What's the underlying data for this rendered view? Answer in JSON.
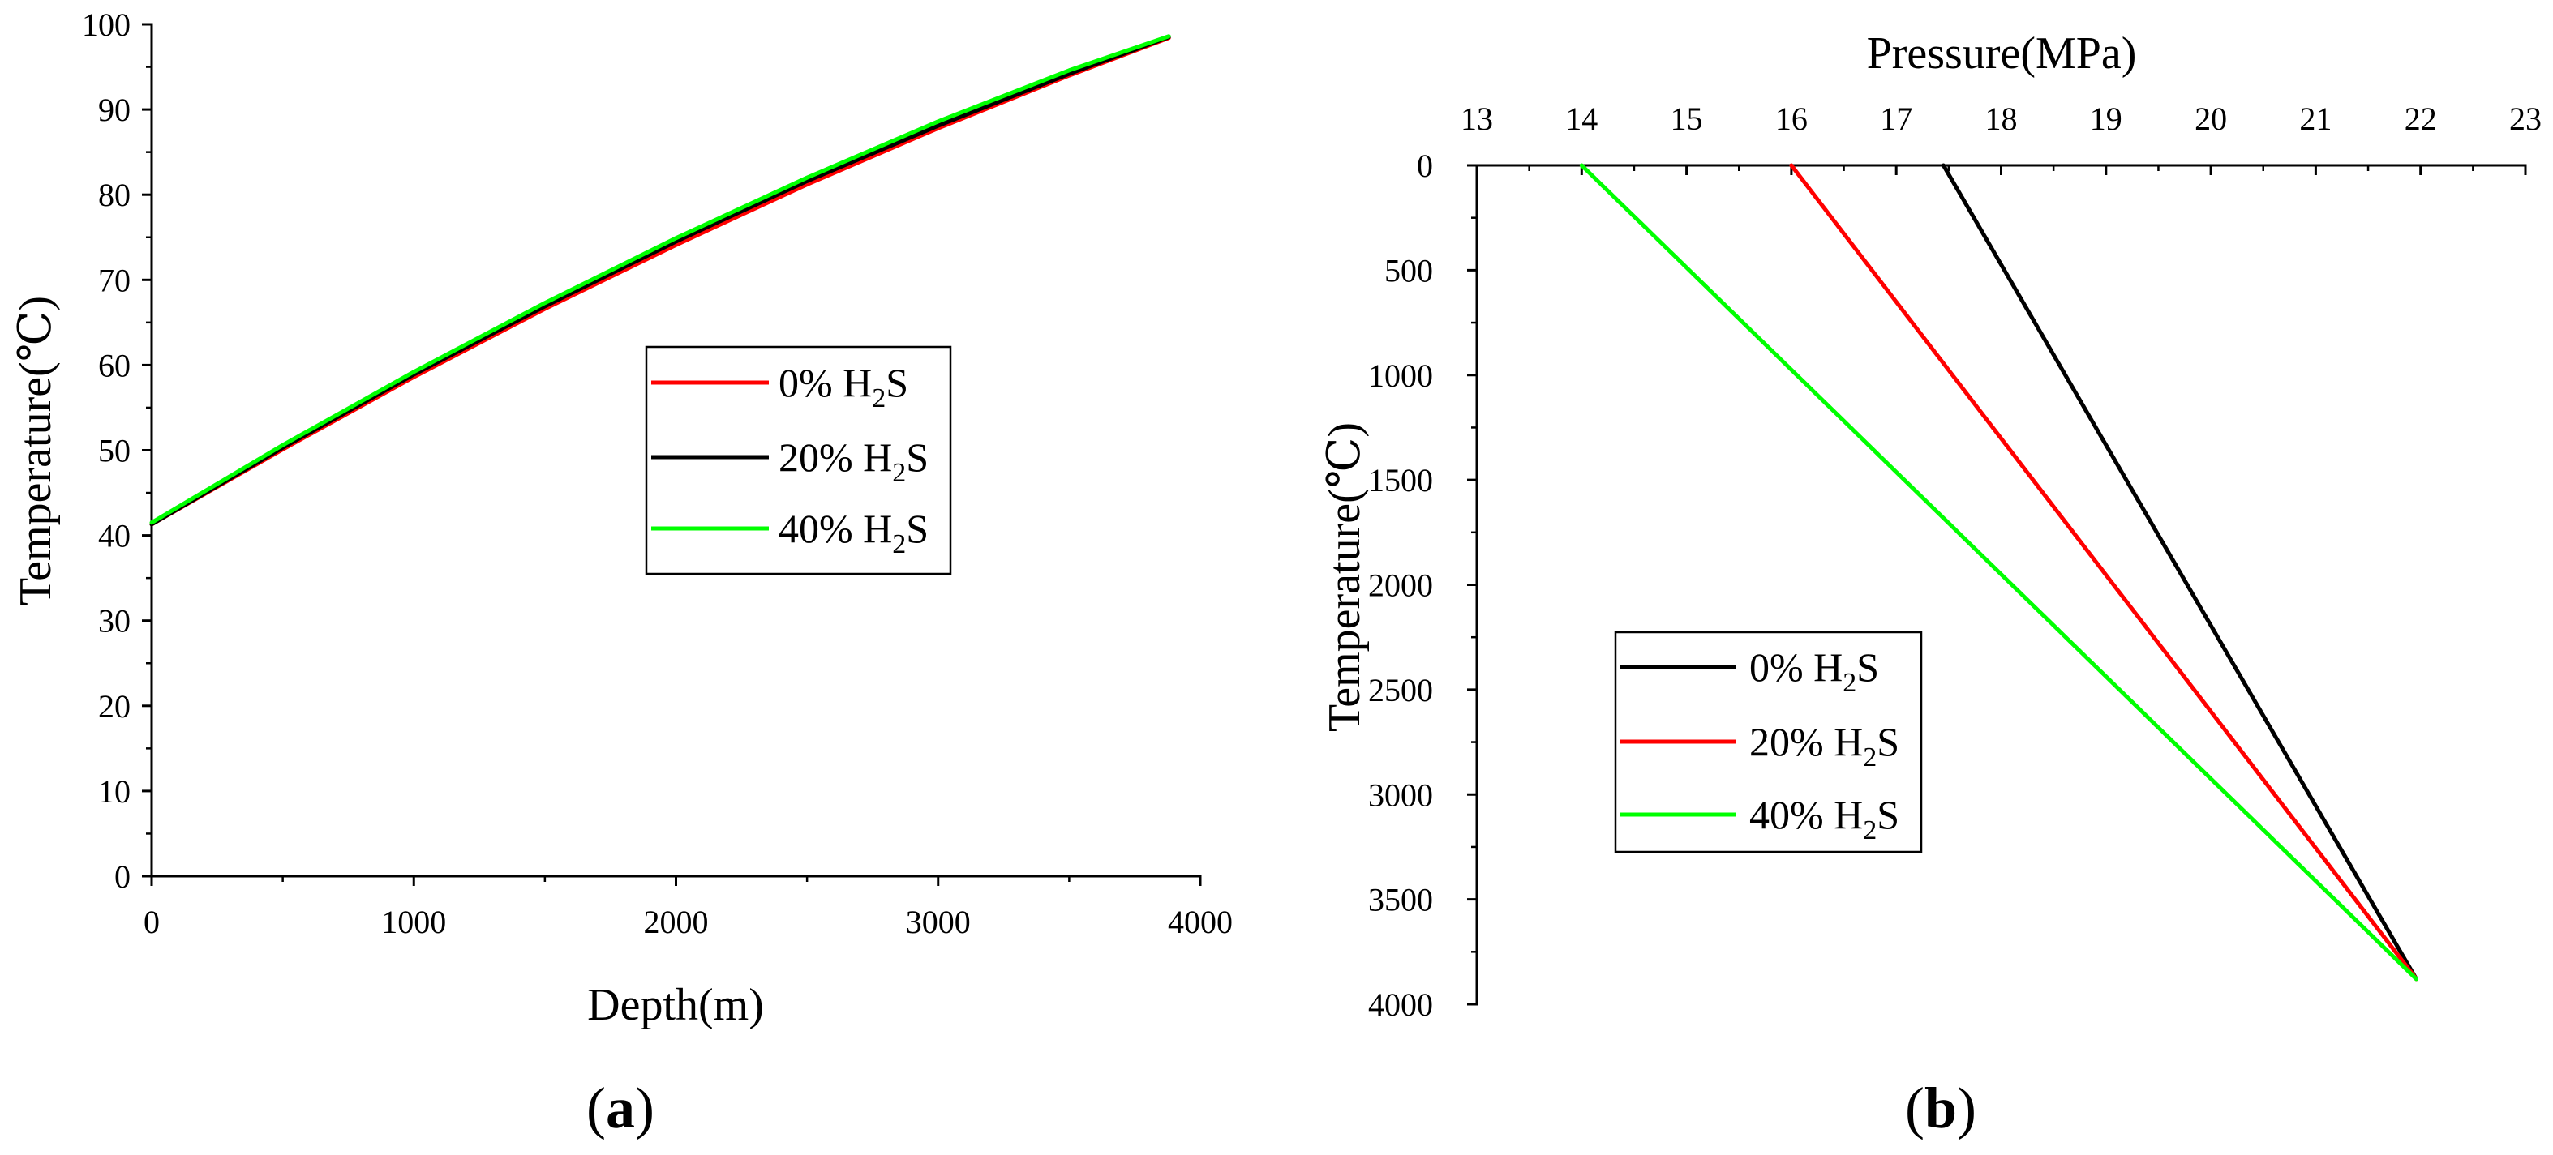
{
  "chart_data": [
    {
      "type": "line",
      "panel_label": [
        "(",
        "a",
        ")"
      ],
      "xlabel": "Depth(m)",
      "ylabel": "Temperature(℃)",
      "xlim": [
        0,
        4000
      ],
      "ylim": [
        0,
        100
      ],
      "x_ticks": [
        0,
        1000,
        2000,
        3000,
        4000
      ],
      "y_ticks": [
        0,
        10,
        20,
        30,
        40,
        50,
        60,
        70,
        80,
        90,
        100
      ],
      "x_axis_position": "bottom",
      "y_inverted": false,
      "grid": false,
      "legend_position": "center",
      "series": [
        {
          "name_parts": [
            "0% H",
            "2",
            "S"
          ],
          "color": "#ff0000",
          "x": [
            0,
            500,
            1000,
            1500,
            2000,
            2500,
            3000,
            3500,
            3880
          ],
          "y": [
            41.3,
            50.1,
            58.6,
            66.6,
            74.1,
            81.2,
            87.8,
            94.0,
            98.4
          ]
        },
        {
          "name_parts": [
            "20% H",
            "2",
            "S"
          ],
          "color": "#000000",
          "x": [
            0,
            500,
            1000,
            1500,
            2000,
            2500,
            3000,
            3500,
            3880
          ],
          "y": [
            41.3,
            50.3,
            58.9,
            66.9,
            74.5,
            81.6,
            88.1,
            94.2,
            98.5
          ]
        },
        {
          "name_parts": [
            "40% H",
            "2",
            "S"
          ],
          "color": "#00ff00",
          "x": [
            0,
            500,
            1000,
            1500,
            2000,
            2500,
            3000,
            3500,
            3880
          ],
          "y": [
            41.5,
            50.6,
            59.2,
            67.3,
            74.9,
            82.0,
            88.6,
            94.6,
            98.6
          ]
        }
      ]
    },
    {
      "type": "line",
      "panel_label": [
        "(",
        "b",
        ")"
      ],
      "xlabel": "Pressure(MPa)",
      "ylabel": "Temperature(℃)",
      "xlim": [
        13,
        23
      ],
      "ylim": [
        0,
        4000
      ],
      "x_ticks": [
        13,
        14,
        15,
        16,
        17,
        18,
        19,
        20,
        21,
        22,
        23
      ],
      "y_ticks": [
        0,
        500,
        1000,
        1500,
        2000,
        2500,
        3000,
        3500,
        4000
      ],
      "x_axis_position": "top",
      "y_inverted": true,
      "grid": false,
      "legend_position": "center-left",
      "series": [
        {
          "name_parts": [
            "0% H",
            "2",
            "S"
          ],
          "color": "#000000",
          "x": [
            17.45,
            21.96
          ],
          "y": [
            0,
            3880
          ]
        },
        {
          "name_parts": [
            "20% H",
            "2",
            "S"
          ],
          "color": "#ff0000",
          "x": [
            16.0,
            21.96
          ],
          "y": [
            0,
            3880
          ]
        },
        {
          "name_parts": [
            "40% H",
            "2",
            "S"
          ],
          "color": "#00ff00",
          "x": [
            14.0,
            21.96
          ],
          "y": [
            0,
            3880
          ]
        }
      ]
    }
  ]
}
